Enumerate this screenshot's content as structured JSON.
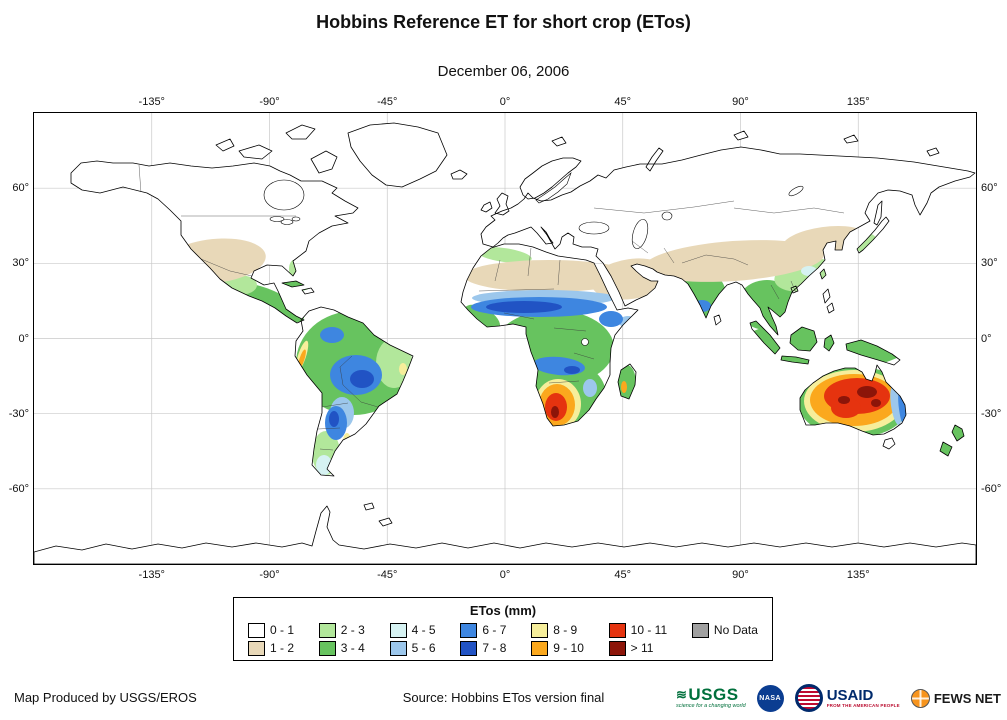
{
  "title": "Hobbins Reference ET for short crop (ETos)",
  "subtitle": "December 06, 2006",
  "map": {
    "lon_ticks": [
      "-135°",
      "-90°",
      "-45°",
      "0°",
      "45°",
      "90°",
      "135°"
    ],
    "lat_ticks": [
      "60°",
      "30°",
      "0°",
      "-30°",
      "-60°"
    ]
  },
  "legend": {
    "title": "ETos (mm)",
    "entries": [
      {
        "label": "0 - 1",
        "color": "#ffffff"
      },
      {
        "label": "1 - 2",
        "color": "#e8d8b8"
      },
      {
        "label": "2 - 3",
        "color": "#b2e79b"
      },
      {
        "label": "3 - 4",
        "color": "#67c35f"
      },
      {
        "label": "4 - 5",
        "color": "#d6f2f2"
      },
      {
        "label": "5 - 6",
        "color": "#9cc7ec"
      },
      {
        "label": "6 - 7",
        "color": "#3e86e0"
      },
      {
        "label": "7 - 8",
        "color": "#2153c4"
      },
      {
        "label": "8 - 9",
        "color": "#f6ee9b"
      },
      {
        "label": "9 - 10",
        "color": "#fba81d"
      },
      {
        "label": "10 - 11",
        "color": "#e5330f"
      },
      {
        "label": "> 11",
        "color": "#8c1509"
      },
      {
        "label": "No Data",
        "color": "#a0a0a0"
      }
    ]
  },
  "footer": {
    "produced_by": "Map Produced by USGS/EROS",
    "source": "Source: Hobbins ETos version final",
    "logos": [
      {
        "name": "usgs",
        "text": "USGS",
        "tagline": "science for a changing world"
      },
      {
        "name": "nasa",
        "text": "NASA"
      },
      {
        "name": "usaid",
        "text": "USAID",
        "tagline": "FROM THE AMERICAN PEOPLE"
      },
      {
        "name": "fewsnet",
        "text": "FEWS NET"
      }
    ]
  }
}
